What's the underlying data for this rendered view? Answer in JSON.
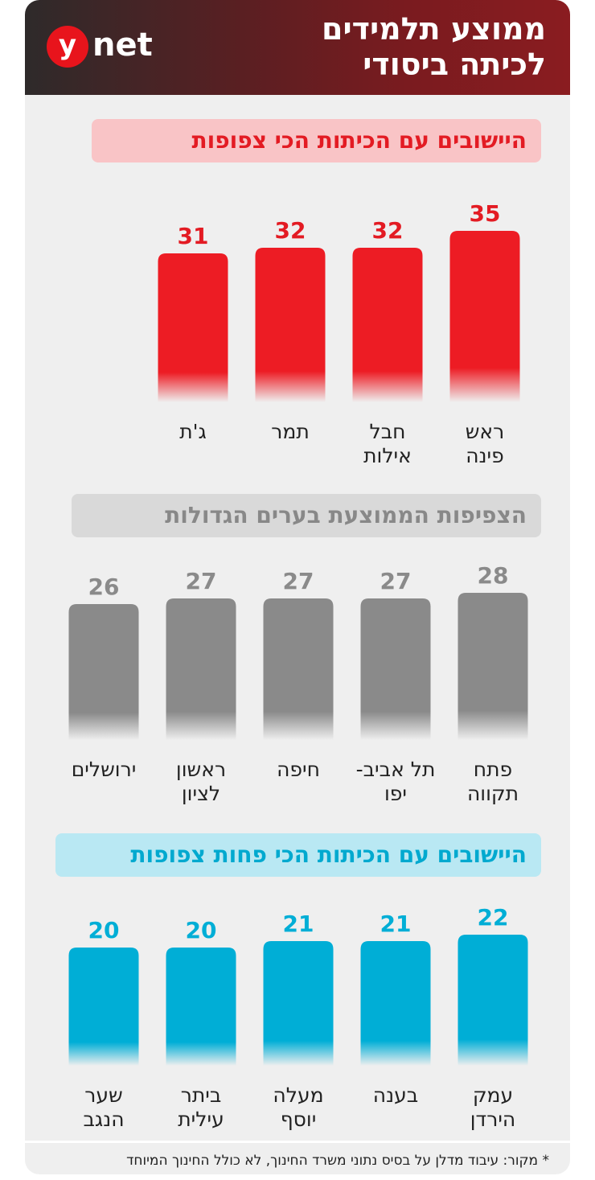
{
  "header": {
    "title_line1": "ממוצע תלמידים",
    "title_line2": "לכיתה ביסודי",
    "logo_y": "y",
    "logo_net": "net"
  },
  "chart_data": [
    {
      "type": "bar",
      "title": "היישובים עם הכיתות הכי צפופות",
      "categories": [
        "ראש\nפינה",
        "חבל\nאילות",
        "תמר",
        "ג'ת"
      ],
      "values": [
        35,
        32,
        32,
        31
      ],
      "color": "#ed1c24",
      "label_color": "#e31b23"
    },
    {
      "type": "bar",
      "title": "הצפיפות הממוצעת בערים הגדולות",
      "categories": [
        "פתח\nתקווה",
        "תל אביב-\nיפו",
        "חיפה",
        "ראשון\nלציון",
        "ירושלים"
      ],
      "values": [
        28,
        27,
        27,
        27,
        26
      ],
      "color": "#8a8a8a",
      "label_color": "#8a8a8a"
    },
    {
      "type": "bar",
      "title": "היישובים עם הכיתות הכי פחות צפופות",
      "categories": [
        "עמק\nהירדן",
        "בענה",
        "מעלה\nיוסף",
        "ביתר\nעילית",
        "שער\nהנגב"
      ],
      "values": [
        22,
        21,
        21,
        20,
        20
      ],
      "color": "#00aed6",
      "label_color": "#00aed6"
    }
  ],
  "footnote": "* מקור: עיבוד מדלן על בסיס נתוני משרד החינוך, לא כולל החינוך המיוחד",
  "colors": {
    "brand_red": "#e8141c",
    "header_dark": "#2e2a2a",
    "header_red": "#8a1c20"
  }
}
